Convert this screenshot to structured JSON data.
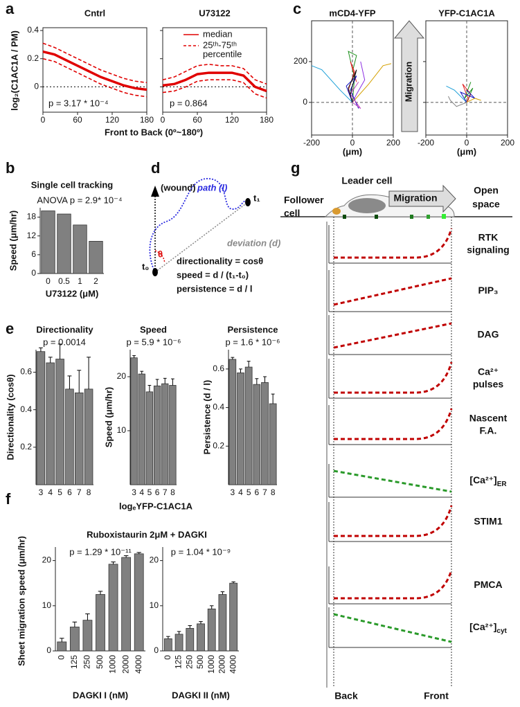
{
  "panel_labels": [
    "a",
    "b",
    "c",
    "d",
    "e",
    "f",
    "g"
  ],
  "figure": {
    "a_x_label": "Front to Back (0º~180º)",
    "a_y_label": "log₂(C1AC1A / PM)",
    "e_x_label": "logₑYFP-C1AC1A",
    "f_title": "Ruboxistaurin 2μM + DAGKI",
    "f_y_label": "Sheet migration speed (μm/hr)",
    "c_arrow": "Migration"
  },
  "chart_data": [
    {
      "type": "line",
      "title": "Cntrl",
      "x": [
        0,
        20,
        40,
        60,
        80,
        100,
        120,
        140,
        160,
        180
      ],
      "xlim": [
        0,
        180
      ],
      "xticks": [
        0,
        60,
        120,
        180
      ],
      "ylim": [
        -0.18,
        0.42
      ],
      "yticks": [
        0,
        0.2,
        0.4
      ],
      "zero_line": true,
      "annotation": "p = 3.17 * 10⁻⁴",
      "series": [
        {
          "color": "#e00000",
          "dash": false,
          "values": [
            0.25,
            0.23,
            0.19,
            0.15,
            0.11,
            0.07,
            0.04,
            0.01,
            -0.01,
            -0.02
          ]
        },
        {
          "color": "#e00000",
          "dash": true,
          "values": [
            0.2,
            0.18,
            0.14,
            0.1,
            0.06,
            0.02,
            -0.01,
            -0.04,
            -0.06,
            -0.07
          ]
        },
        {
          "color": "#e00000",
          "dash": true,
          "values": [
            0.31,
            0.28,
            0.24,
            0.2,
            0.16,
            0.12,
            0.09,
            0.06,
            0.04,
            0.03
          ]
        }
      ]
    },
    {
      "type": "line",
      "title": "U73122",
      "x": [
        0,
        20,
        40,
        60,
        80,
        100,
        120,
        140,
        160,
        180
      ],
      "xlim": [
        0,
        180
      ],
      "xticks": [
        0,
        60,
        120,
        180
      ],
      "ylim": [
        -0.18,
        0.42
      ],
      "yticks": [
        0,
        0.2,
        0.4
      ],
      "zero_line": true,
      "annotation": "p = 0.864",
      "legend": [
        {
          "name": [
            "median"
          ],
          "dash": false
        },
        {
          "name": [
            "25ᵗʰ-75ᵗʰ",
            "percentile"
          ],
          "dash": true
        }
      ],
      "series": [
        {
          "color": "#e00000",
          "dash": false,
          "values": [
            0.01,
            0.02,
            0.05,
            0.09,
            0.1,
            0.1,
            0.1,
            0.08,
            0.0,
            -0.03
          ]
        },
        {
          "color": "#e00000",
          "dash": true,
          "values": [
            -0.04,
            -0.03,
            0.0,
            0.04,
            0.05,
            0.05,
            0.05,
            0.03,
            -0.05,
            -0.08
          ]
        },
        {
          "color": "#e00000",
          "dash": true,
          "values": [
            0.05,
            0.07,
            0.11,
            0.15,
            0.16,
            0.15,
            0.15,
            0.13,
            0.05,
            0.02
          ]
        }
      ]
    },
    {
      "type": "track",
      "title": "mCD4-YFP",
      "x_label": "(μm)",
      "xlim": [
        -200,
        200
      ],
      "xticks": [
        -200,
        0,
        200
      ],
      "ylim": [
        -160,
        400
      ],
      "yticks": [
        0,
        200
      ],
      "zero_line": true,
      "tracks": [
        {
          "color": "#1ea0d8",
          "x": [
            0,
            -60,
            -150,
            -200
          ],
          "y": [
            0,
            60,
            160,
            180
          ]
        },
        {
          "color": "#d4a000",
          "x": [
            0,
            80,
            150,
            190
          ],
          "y": [
            0,
            90,
            180,
            190
          ]
        },
        {
          "color": "#1a8f1a",
          "x": [
            0,
            10,
            -20,
            20,
            0
          ],
          "y": [
            0,
            120,
            250,
            230,
            150
          ]
        },
        {
          "color": "#e02020",
          "x": [
            0,
            -20,
            10,
            -10,
            20
          ],
          "y": [
            0,
            60,
            150,
            200,
            100
          ]
        },
        {
          "color": "#8a2be2",
          "x": [
            0,
            20,
            60,
            40
          ],
          "y": [
            0,
            40,
            110,
            200
          ]
        },
        {
          "color": "#1010c0",
          "x": [
            0,
            -30,
            20,
            -10,
            30
          ],
          "y": [
            0,
            80,
            130,
            60,
            -30
          ]
        },
        {
          "color": "#c040c0",
          "x": [
            0,
            40,
            -10,
            30
          ],
          "y": [
            0,
            -30,
            40,
            100
          ]
        },
        {
          "color": "#101010",
          "x": [
            0,
            -20,
            20,
            -10
          ],
          "y": [
            0,
            70,
            160,
            40
          ]
        }
      ]
    },
    {
      "type": "track",
      "title": "YFP-C1AC1A",
      "x_label": "(μm)",
      "xlim": [
        -200,
        200
      ],
      "xticks": [
        -200,
        0,
        200
      ],
      "ylim": [
        -160,
        400
      ],
      "yticks": [
        0,
        200
      ],
      "zero_line": true,
      "tracks": [
        {
          "color": "#1ea0d8",
          "x": [
            0,
            -60,
            -100
          ],
          "y": [
            0,
            60,
            80
          ]
        },
        {
          "color": "#888888",
          "x": [
            0,
            -50,
            -80,
            -90
          ],
          "y": [
            0,
            -20,
            10,
            30
          ]
        },
        {
          "color": "#1a8f1a",
          "x": [
            0,
            30,
            -10,
            20
          ],
          "y": [
            0,
            70,
            20,
            100
          ]
        },
        {
          "color": "#e02020",
          "x": [
            0,
            20,
            -20,
            10
          ],
          "y": [
            0,
            40,
            90,
            10
          ]
        },
        {
          "color": "#1010c0",
          "x": [
            0,
            -30,
            40,
            0
          ],
          "y": [
            0,
            50,
            20,
            60
          ]
        },
        {
          "color": "#d4a000",
          "x": [
            0,
            40,
            70
          ],
          "y": [
            0,
            20,
            10
          ]
        }
      ]
    },
    {
      "type": "bar",
      "title": "Single cell tracking",
      "annotation": "ANOVA p = 2.9* 10⁻⁴",
      "x_label": "U73122 (μM)",
      "y_label": "Speed (μm/hr)",
      "color": "#808080",
      "categories": [
        "0",
        "0.5",
        "1",
        "2"
      ],
      "values": [
        20,
        19,
        15.5,
        10.3
      ],
      "ylim": [
        0,
        21
      ],
      "yticks": [
        0,
        6,
        12,
        18
      ]
    },
    {
      "type": "bar",
      "title": "Directionality",
      "annotation": "p = 0.0014",
      "y_label": "Directionality (cosθ)",
      "color": "#808080",
      "categories": [
        "3",
        "4",
        "5",
        "6",
        "7",
        "8"
      ],
      "values": [
        0.71,
        0.65,
        0.67,
        0.51,
        0.49,
        0.51
      ],
      "errors": [
        0.02,
        0.03,
        0.08,
        0.07,
        0.12,
        0.17
      ],
      "ylim": [
        0,
        0.72
      ],
      "yticks": [
        0.2,
        0.4,
        0.6
      ]
    },
    {
      "type": "bar",
      "title": "Speed",
      "annotation": "p = 5.9 * 10⁻⁶",
      "y_label": "Speed (μm/hr)",
      "color": "#808080",
      "categories": [
        "3",
        "4",
        "5",
        "6",
        "7",
        "8"
      ],
      "values": [
        23.5,
        20.5,
        17.2,
        18.3,
        18.7,
        18.4
      ],
      "errors": [
        0.4,
        0.5,
        1.2,
        1.2,
        1,
        1.2
      ],
      "ylim": [
        0,
        25
      ],
      "yticks": [
        10,
        20
      ]
    },
    {
      "type": "bar",
      "title": "Persistence",
      "annotation": "p = 1.6 * 10⁻⁶",
      "y_label": "Persistence (d / l)",
      "color": "#808080",
      "categories": [
        "3",
        "4",
        "5",
        "6",
        "7",
        "8"
      ],
      "values": [
        0.65,
        0.58,
        0.61,
        0.52,
        0.53,
        0.42
      ],
      "errors": [
        0.01,
        0.02,
        0.03,
        0.03,
        0.03,
        0.05
      ],
      "ylim": [
        0,
        0.7
      ],
      "yticks": [
        0.2,
        0.4,
        0.6
      ]
    },
    {
      "type": "bar",
      "annotation": "p = 1.29 * 10⁻¹¹",
      "x_label": "DAGKI I (nM)",
      "color": "#808080",
      "rotate_labels": true,
      "categories": [
        "0",
        "125",
        "250",
        "500",
        "1000",
        "2000",
        "4000"
      ],
      "values": [
        2,
        5.3,
        6.8,
        12.5,
        19.2,
        20.7,
        21.5
      ],
      "errors": [
        0.8,
        1.1,
        1.4,
        0.7,
        0.5,
        0.4,
        0.3
      ],
      "ylim": [
        0,
        23
      ],
      "yticks": [
        0,
        10,
        20
      ]
    },
    {
      "type": "bar",
      "annotation": "p = 1.04 * 10⁻⁹",
      "x_label": "DAGKI II (nM)",
      "color": "#808080",
      "rotate_labels": true,
      "categories": [
        "0",
        "125",
        "250",
        "500",
        "1000",
        "2000",
        "4000"
      ],
      "values": [
        2.7,
        3.7,
        5,
        6,
        9.3,
        12.5,
        15
      ],
      "errors": [
        0.5,
        0.6,
        0.6,
        0.5,
        0.7,
        0.6,
        0.3
      ],
      "ylim": [
        0,
        23
      ],
      "yticks": [
        0,
        10,
        20
      ]
    }
  ],
  "diagram_d": {
    "wound": "(wound)",
    "path": "path (l)",
    "deviation": "deviation (d)",
    "theta": "θ",
    "t0": "t₀",
    "t1": "t₁",
    "equations": [
      "directionality = cosθ",
      "speed = d / (t₁-t₀)",
      "persistence = d / l"
    ]
  },
  "diagram_g": {
    "leader": "Leader cell",
    "follower": [
      "Follower",
      "cell"
    ],
    "open_space": [
      "Open",
      "space"
    ],
    "migration": "Migration",
    "back": "Back",
    "front": "Front",
    "rows": [
      {
        "label": [
          "RTK",
          "signaling"
        ],
        "shape": "exp",
        "color": "#c00000"
      },
      {
        "label": [
          "PIP₃"
        ],
        "shape": "rise",
        "color": "#c00000"
      },
      {
        "label": [
          "DAG"
        ],
        "shape": "rise",
        "color": "#c00000"
      },
      {
        "label": [
          "Ca²⁺",
          "pulses"
        ],
        "shape": "exp",
        "color": "#c00000"
      },
      {
        "label": [
          "Nascent",
          "F.A."
        ],
        "shape": "exp",
        "color": "#c00000"
      },
      {
        "label": [
          "[Ca²⁺]"
        ],
        "sub": "ER",
        "shape": "fall",
        "color": "#2a9a2a"
      },
      {
        "label": [
          "STIM1"
        ],
        "shape": "exp",
        "color": "#c00000"
      },
      {
        "label": [
          "PMCA"
        ],
        "shape": "exp",
        "color": "#c00000"
      },
      {
        "label": [
          "[Ca²⁺]"
        ],
        "sub": "cyt",
        "shape": "fall",
        "color": "#2a9a2a"
      }
    ]
  }
}
